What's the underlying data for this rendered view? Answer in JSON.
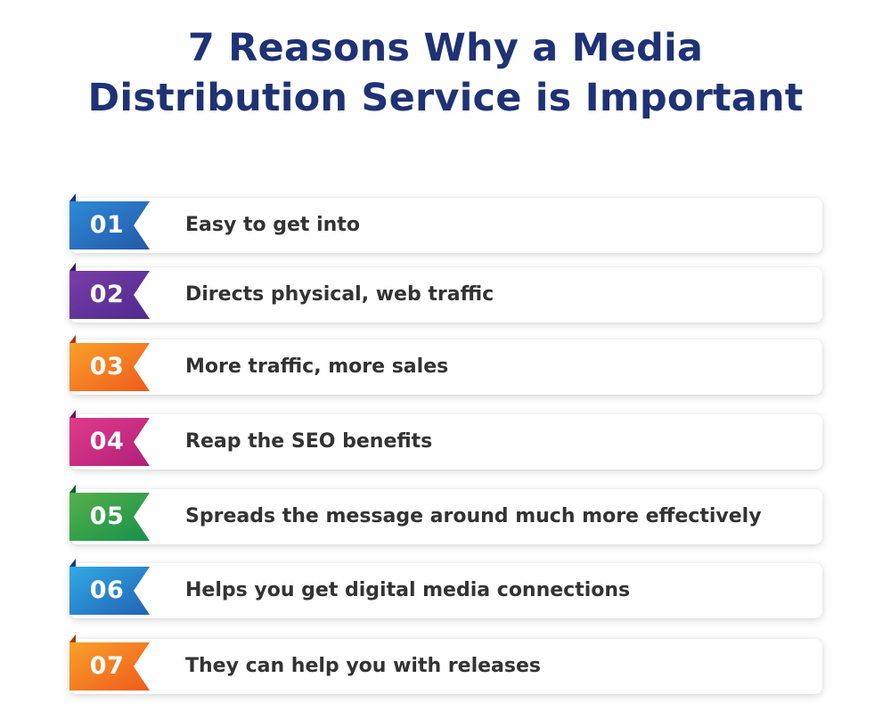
{
  "header": {
    "title_line1": "7 Reasons Why a Media",
    "title_line2": "Distribution Service is Important"
  },
  "reasons": [
    {
      "number": "01",
      "text": "Easy to get into",
      "color_start": "#2d8bd6",
      "color_end": "#2458a8",
      "fold_color": "#173a78"
    },
    {
      "number": "02",
      "text": "Directs physical, web traffic",
      "color_start": "#7a3ea8",
      "color_end": "#4e2a8e",
      "fold_color": "#321a5e"
    },
    {
      "number": "03",
      "text": "More traffic, more sales",
      "color_start": "#f9a12a",
      "color_end": "#ef5a1c",
      "fold_color": "#a8380e"
    },
    {
      "number": "04",
      "text": "Reap the SEO benefits",
      "color_start": "#e13b8a",
      "color_end": "#b0207a",
      "fold_color": "#701250"
    },
    {
      "number": "05",
      "text": "Spreads the message around much more effectively",
      "color_start": "#55b04a",
      "color_end": "#16914a",
      "fold_color": "#0b5e2f"
    },
    {
      "number": "06",
      "text": "Helps you get digital media connections",
      "color_start": "#32a9e6",
      "color_end": "#2163b2",
      "fold_color": "#15407a"
    },
    {
      "number": "07",
      "text": "They can help you with releases",
      "color_start": "#f9a12a",
      "color_end": "#ef5a1c",
      "fold_color": "#a8380e"
    }
  ]
}
